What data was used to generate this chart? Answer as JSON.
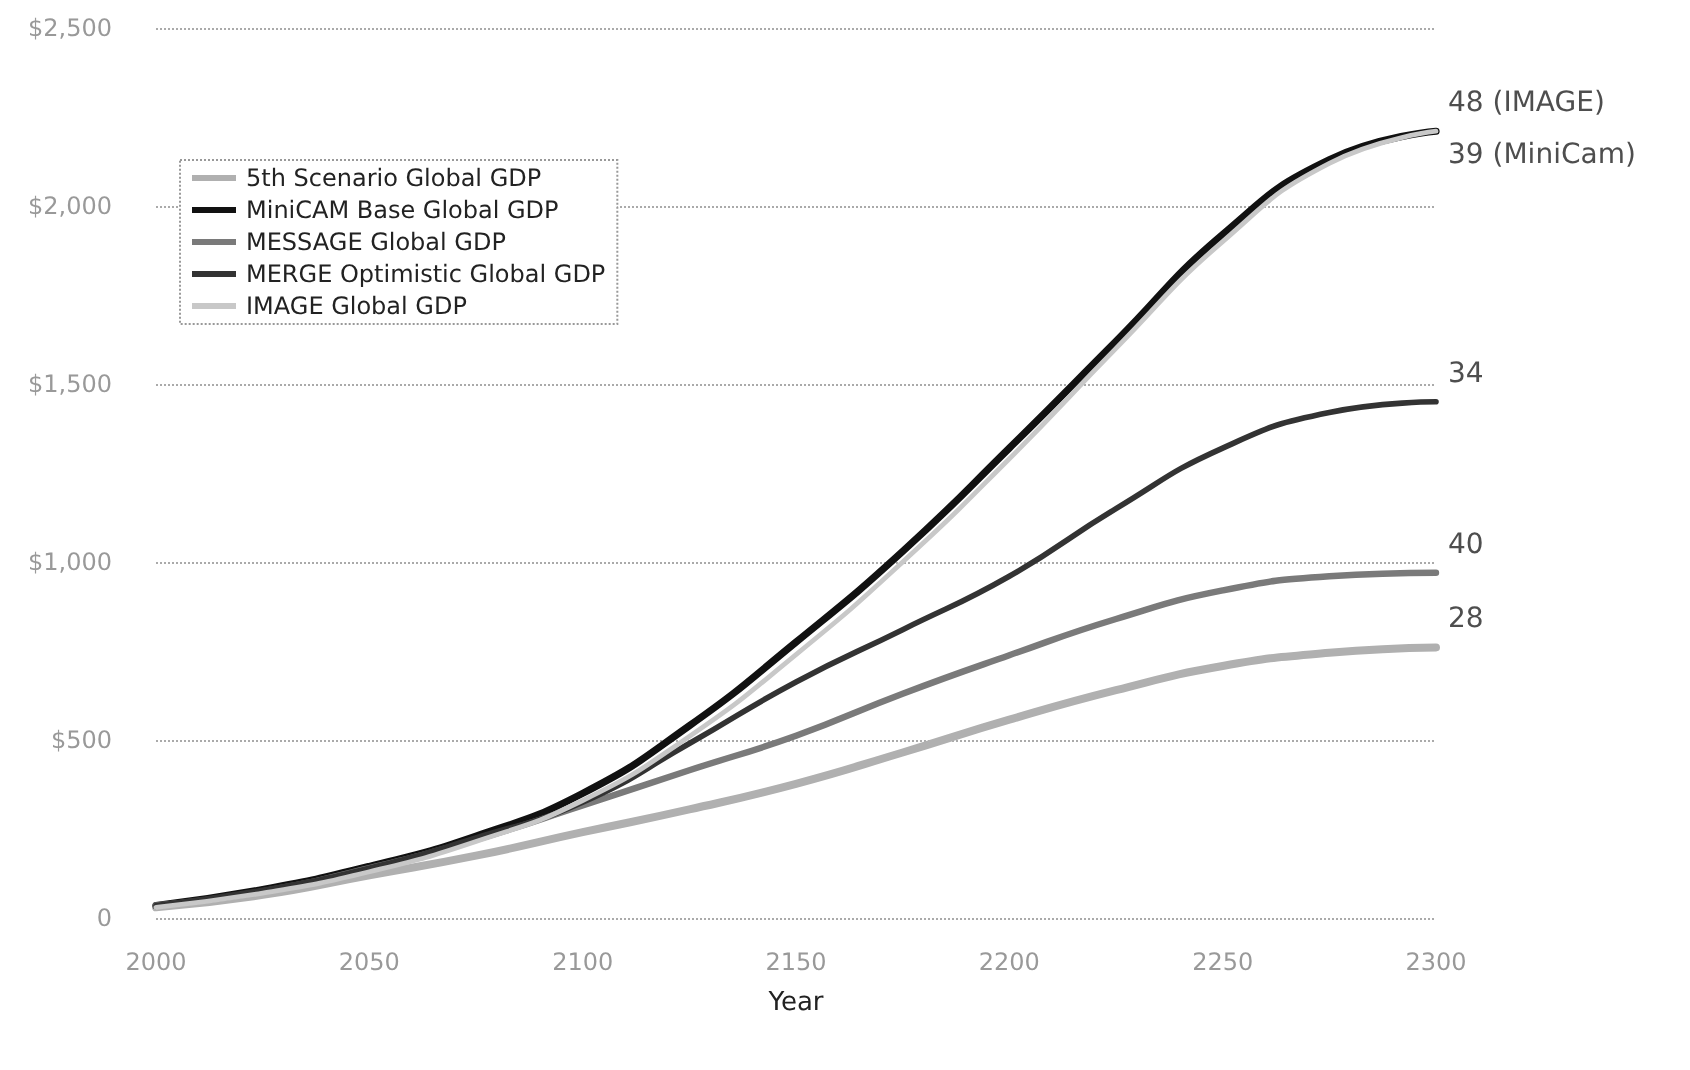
{
  "chart_data": {
    "type": "line",
    "xlabel": "Year",
    "x": [
      2000,
      2025,
      2050,
      2075,
      2100,
      2125,
      2150,
      2175,
      2200,
      2225,
      2250,
      2275,
      2300
    ],
    "series": [
      {
        "name": "5th Scenario Global GDP",
        "color": "#b0b0b0",
        "values": [
          30,
          65,
          120,
          175,
          241,
          305,
          377,
          465,
          557,
          640,
          708,
          745,
          760
        ]
      },
      {
        "name": "MiniCAM Base Global GDP",
        "color": "#111111",
        "values": [
          35,
          80,
          145,
          230,
          350,
          540,
          775,
          1030,
          1320,
          1620,
          1920,
          2130,
          2210
        ]
      },
      {
        "name": "MESSAGE Global GDP",
        "color": "#7a7a7a",
        "values": [
          35,
          75,
          140,
          220,
          316,
          415,
          512,
          630,
          738,
          840,
          920,
          960,
          970
        ]
      },
      {
        "name": "MERGE Optimistic Global GDP",
        "color": "#333333",
        "values": [
          35,
          78,
          140,
          225,
          325,
          490,
          663,
          810,
          960,
          1150,
          1320,
          1420,
          1450
        ]
      },
      {
        "name": "IMAGE Global GDP",
        "color": "#c8c8c8",
        "values": [
          30,
          70,
          130,
          215,
          330,
          510,
          740,
          1000,
          1290,
          1600,
          1900,
          2120,
          2210
        ]
      }
    ],
    "xlim": [
      2000,
      2300
    ],
    "xticks": [
      2000,
      2050,
      2100,
      2150,
      2200,
      2250,
      2300
    ],
    "ylim": [
      0,
      2500
    ],
    "yticks": [
      {
        "value": 0,
        "label": "0"
      },
      {
        "value": 500,
        "label": "$500"
      },
      {
        "value": 1000,
        "label": "$1,000"
      },
      {
        "value": 1500,
        "label": "$1,500"
      },
      {
        "value": 2000,
        "label": "$2,000"
      },
      {
        "value": 2500,
        "label": "$2,500"
      }
    ],
    "annotations": [
      "48 (IMAGE)",
      "39 (MiniCam)",
      "34",
      "40",
      "28"
    ],
    "grid": "y",
    "legend": "top left",
    "marker": "none",
    "line_style": "solid"
  }
}
